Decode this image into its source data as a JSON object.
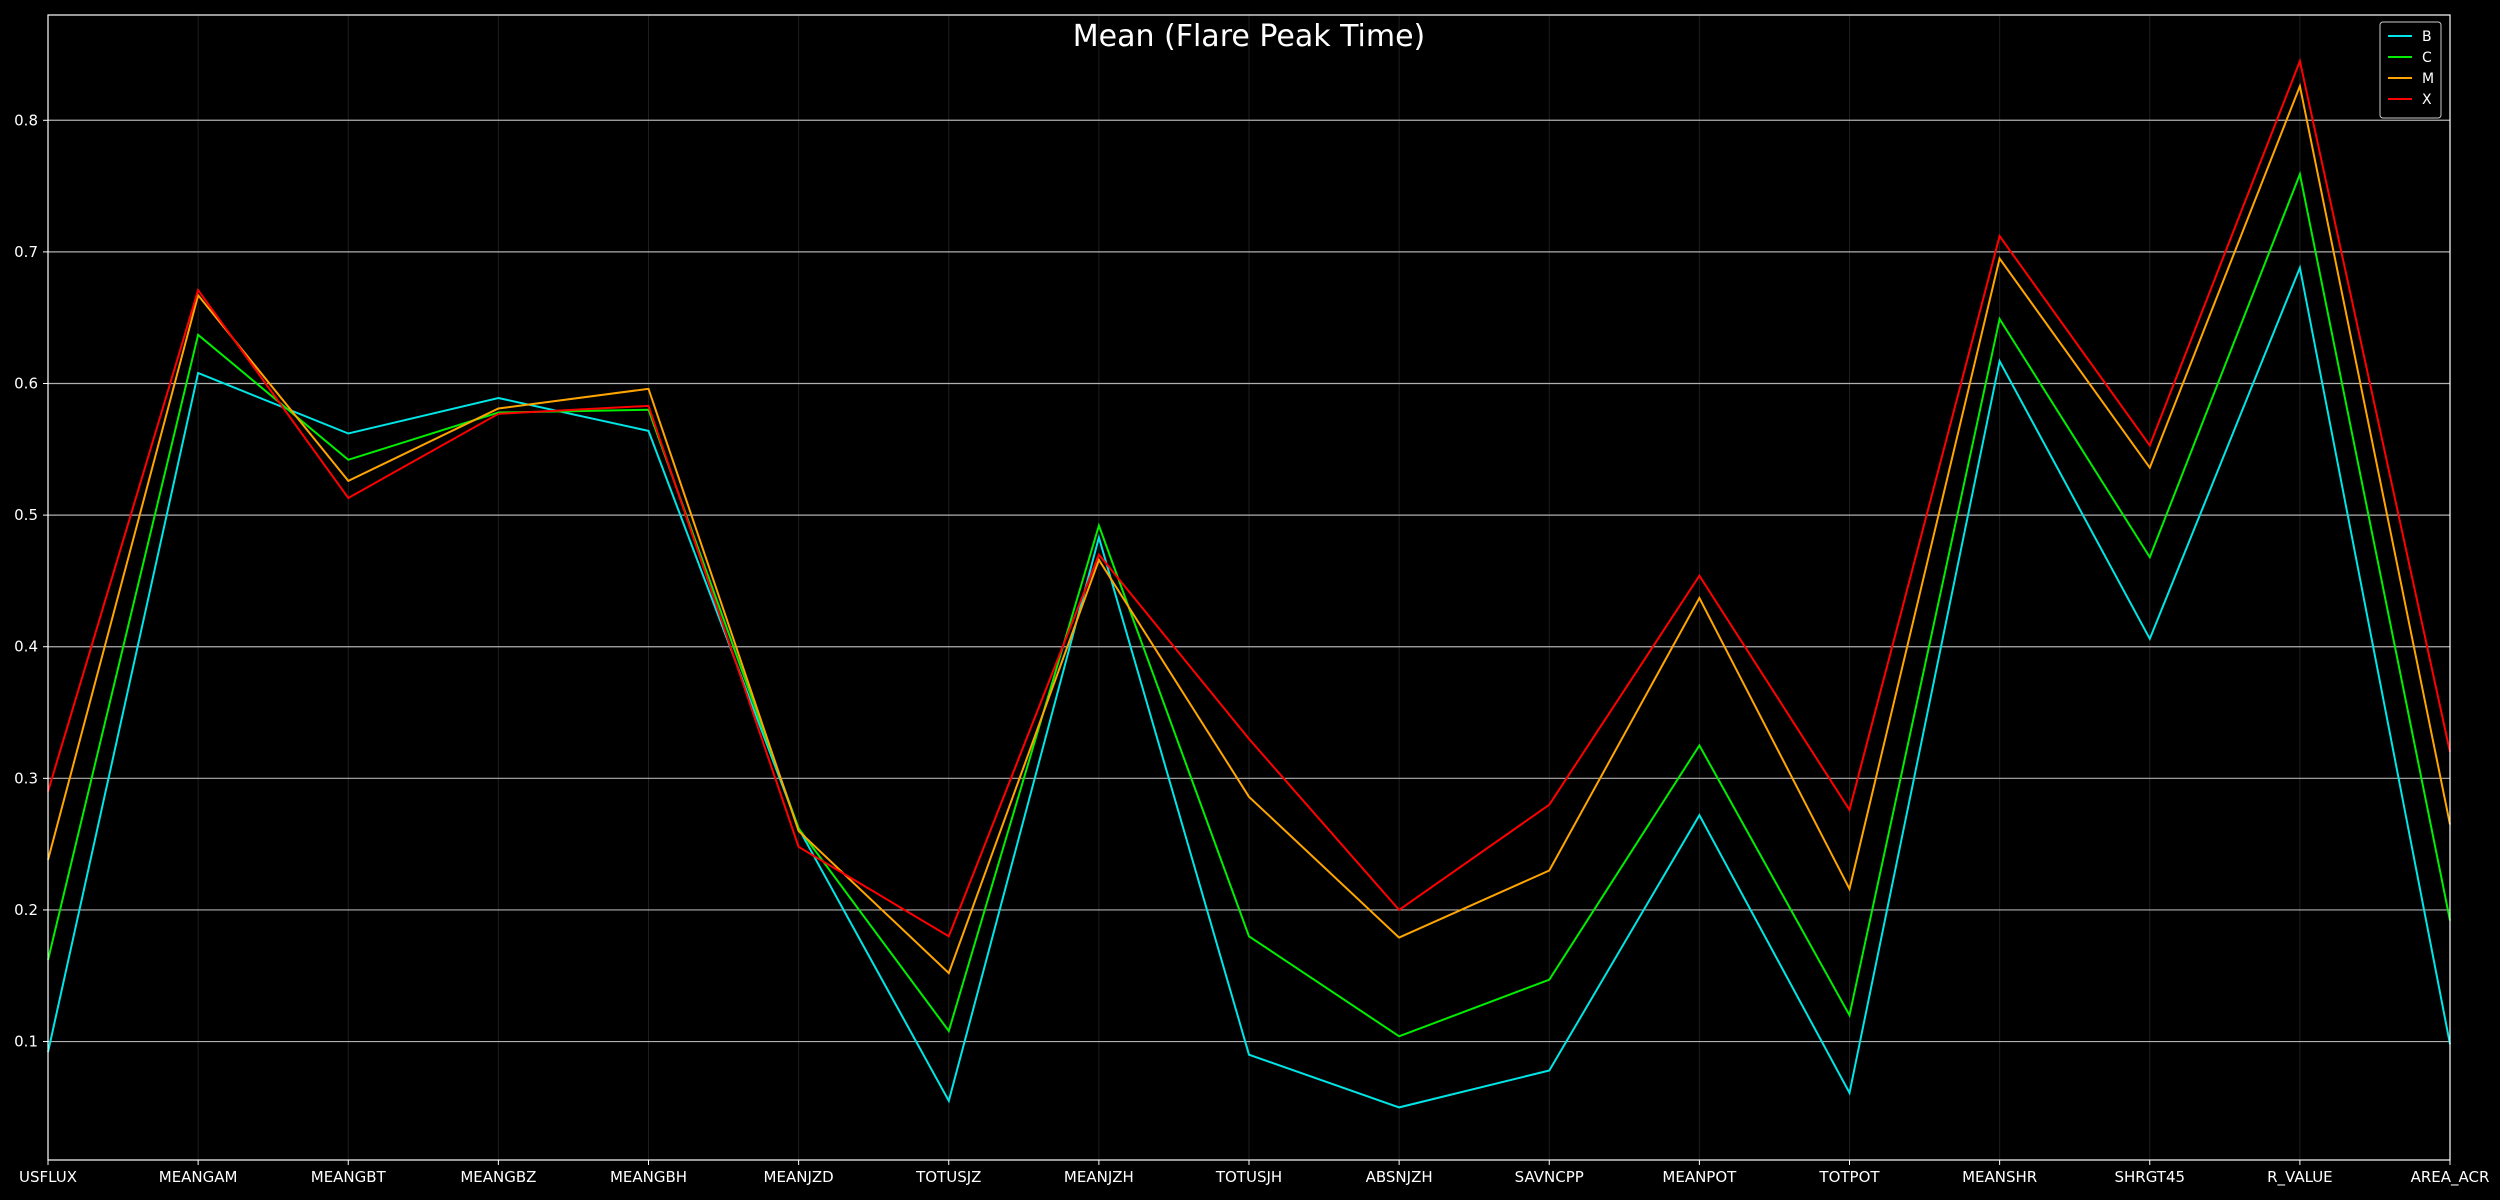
{
  "chart_data": {
    "type": "line",
    "title": "Mean (Flare Peak Time)",
    "xlabel": "",
    "ylabel": "",
    "categories": [
      "USFLUX",
      "MEANGAM",
      "MEANGBT",
      "MEANGBZ",
      "MEANGBH",
      "MEANJZD",
      "TOTUSJZ",
      "MEANJZH",
      "TOTUSJH",
      "ABSNJZH",
      "SAVNCPP",
      "MEANPOT",
      "TOTPOT",
      "MEANSHR",
      "SHRGT45",
      "R_VALUE",
      "AREA_ACR"
    ],
    "ylim": [
      0.01,
      0.88
    ],
    "yticks": [
      0.1,
      0.2,
      0.3,
      0.4,
      0.5,
      0.6,
      0.7,
      0.8
    ],
    "ytick_labels": [
      "0.1",
      "0.2",
      "0.3",
      "0.4",
      "0.5",
      "0.6",
      "0.7",
      "0.8"
    ],
    "grid": "horizontal",
    "legend_position": "top-right",
    "background": "#000000",
    "series": [
      {
        "name": "B",
        "color": "#00e5e5",
        "values": [
          0.092,
          0.608,
          0.562,
          0.589,
          0.564,
          0.262,
          0.055,
          0.483,
          0.09,
          0.05,
          0.078,
          0.272,
          0.061,
          0.617,
          0.406,
          0.688,
          0.098
        ]
      },
      {
        "name": "C",
        "color": "#00ee00",
        "values": [
          0.162,
          0.637,
          0.542,
          0.578,
          0.58,
          0.262,
          0.108,
          0.492,
          0.18,
          0.104,
          0.147,
          0.325,
          0.12,
          0.649,
          0.468,
          0.759,
          0.192
        ]
      },
      {
        "name": "M",
        "color": "#ffa500",
        "values": [
          0.238,
          0.667,
          0.526,
          0.581,
          0.596,
          0.26,
          0.152,
          0.466,
          0.286,
          0.179,
          0.23,
          0.437,
          0.216,
          0.695,
          0.536,
          0.826,
          0.265
        ]
      },
      {
        "name": "X",
        "color": "#ff0000",
        "values": [
          0.29,
          0.671,
          0.513,
          0.577,
          0.583,
          0.248,
          0.18,
          0.47,
          0.33,
          0.2,
          0.28,
          0.454,
          0.276,
          0.712,
          0.553,
          0.845,
          0.32
        ]
      }
    ]
  }
}
